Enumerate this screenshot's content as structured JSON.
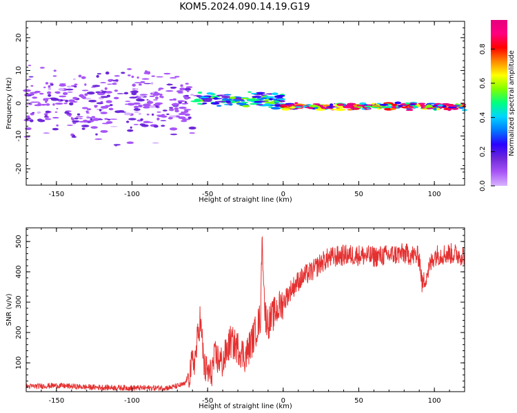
{
  "figure_title": "KOM5.2024.090.14.19.G19",
  "colors": {
    "snr_line": "#e53030",
    "colormap": [
      "#d8b4fe",
      "#a855f7",
      "#6d28d9",
      "#2a00ff",
      "#0077ff",
      "#00d5ff",
      "#00ff80",
      "#7fff00",
      "#ffff00",
      "#ff8800",
      "#ff0000",
      "#ff007f",
      "#e6007e"
    ]
  },
  "chart_data": [
    {
      "type": "heatmap",
      "title": "",
      "xlabel": "Height of straight line (km)",
      "ylabel": "Frequency (Hz)",
      "xlim": [
        -170,
        120
      ],
      "ylim": [
        -25,
        25
      ],
      "xticks": [
        "-150",
        "-100",
        "-50",
        "0",
        "50",
        "100"
      ],
      "yticks": [
        "-20",
        "-10",
        "0",
        "10",
        "20"
      ],
      "colorbar": {
        "label": "Normalized spectral amplitude",
        "range": [
          0,
          0.97
        ],
        "ticks": [
          "0.0",
          "0.2",
          "0.4",
          "0.6",
          "0.8"
        ]
      },
      "description_of_signal": [
        {
          "x_range": [
            -170,
            -60
          ],
          "freq_center": 0,
          "freq_spread": 10,
          "amplitude": 0.1
        },
        {
          "x_range": [
            -60,
            0
          ],
          "freq_center": 1,
          "freq_spread": 2,
          "amplitude": 0.3
        },
        {
          "x_range": [
            0,
            120
          ],
          "freq_center": -1,
          "freq_spread": 1,
          "amplitude": 0.6
        }
      ]
    },
    {
      "type": "line",
      "title": "",
      "xlabel": "Height of straight line (km)",
      "ylabel": "SNR (v/v)",
      "xlim": [
        -170,
        120
      ],
      "ylim": [
        5,
        545
      ],
      "xticks": [
        "-150",
        "-100",
        "-50",
        "0",
        "50",
        "100"
      ],
      "yticks": [
        "100",
        "200",
        "300",
        "400",
        "500"
      ],
      "series": [
        {
          "x": [
            -170,
            -150,
            -130,
            -110,
            -90,
            -75,
            -65,
            -58,
            -55,
            -52,
            -48,
            -45,
            -40,
            -35,
            -30,
            -25,
            -20,
            -15,
            -14,
            -12,
            -10,
            -5,
            0,
            5,
            10,
            15,
            20,
            25,
            30,
            35,
            40,
            50,
            60,
            70,
            80,
            90,
            92,
            100,
            110,
            120
          ],
          "y": [
            22,
            25,
            20,
            18,
            17,
            18,
            30,
            120,
            245,
            80,
            60,
            120,
            100,
            170,
            150,
            120,
            180,
            250,
            515,
            260,
            230,
            270,
            300,
            340,
            370,
            390,
            405,
            430,
            445,
            450,
            455,
            455,
            450,
            455,
            460,
            450,
            355,
            455,
            460,
            455
          ]
        }
      ]
    }
  ]
}
